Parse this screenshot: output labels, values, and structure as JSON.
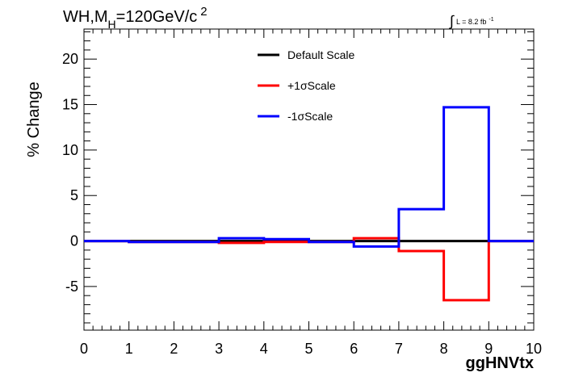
{
  "chart_data": {
    "type": "histogram-step",
    "title": {
      "main": "WH,M",
      "subscript": "H",
      "rest": "=120GeV/c",
      "superscript": "2"
    },
    "luminosity": {
      "integral_symbol": "∫",
      "text": "L = 8.2 fb",
      "superscript": "-1"
    },
    "xlabel": "ggHNVtx",
    "ylabel": "% Change",
    "xlim": [
      0,
      10
    ],
    "ylim": [
      -9.8,
      23.3
    ],
    "xticks": [
      0,
      1,
      2,
      3,
      4,
      5,
      6,
      7,
      8,
      9,
      10
    ],
    "yticks": [
      -5,
      0,
      5,
      10,
      15,
      20
    ],
    "xtick_labels": [
      "0",
      "1",
      "2",
      "3",
      "4",
      "5",
      "6",
      "7",
      "8",
      "9",
      "10"
    ],
    "ytick_labels": [
      "-5",
      "0",
      "5",
      "10",
      "15",
      "20"
    ],
    "bin_edges": [
      0,
      1,
      2,
      3,
      4,
      5,
      6,
      7,
      8,
      9,
      10
    ],
    "bin_centers": [
      0.5,
      1.5,
      2.5,
      3.5,
      4.5,
      5.5,
      6.5,
      7.5,
      8.5,
      9.5
    ],
    "series": [
      {
        "name": "Default Scale",
        "color": "#000000",
        "values": [
          0,
          0,
          0,
          0,
          0,
          0,
          0,
          0,
          0,
          0
        ]
      },
      {
        "name": "+1σScale",
        "color": "#ff0000",
        "values": [
          0,
          -0.1,
          -0.1,
          -0.2,
          -0.1,
          -0.1,
          0.3,
          -1.1,
          -6.5,
          0
        ]
      },
      {
        "name": "-1σScale",
        "color": "#0000ff",
        "values": [
          0,
          -0.1,
          -0.1,
          0.3,
          0.2,
          -0.1,
          -0.6,
          3.5,
          14.7,
          0
        ]
      }
    ],
    "legend_position": "top-center"
  }
}
